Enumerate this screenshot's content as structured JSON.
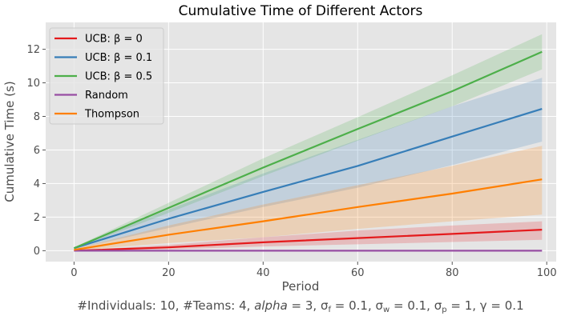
{
  "chart_data": {
    "type": "line",
    "title": "Cumulative Time of Different Actors",
    "xlabel": "Period",
    "ylabel": "Cumulative Time (s)",
    "xlim": [
      -6,
      102
    ],
    "ylim": [
      -0.65,
      13.6
    ],
    "xticks": [
      0,
      20,
      40,
      60,
      80,
      100
    ],
    "yticks": [
      0,
      2,
      4,
      6,
      8,
      10,
      12
    ],
    "grid": true,
    "legend_position": "top-left",
    "series": [
      {
        "name": "UCB: β = 0",
        "color": "#e41a1c",
        "x": [
          0,
          20,
          40,
          60,
          80,
          99
        ],
        "values": [
          0.0,
          0.2,
          0.5,
          0.75,
          1.0,
          1.25
        ],
        "lower": [
          0.0,
          0.08,
          0.25,
          0.38,
          0.52,
          0.65
        ],
        "upper": [
          0.0,
          0.35,
          0.8,
          1.2,
          1.5,
          1.75
        ]
      },
      {
        "name": "UCB: β = 0.1",
        "color": "#377eb8",
        "x": [
          0,
          20,
          40,
          60,
          80,
          99
        ],
        "values": [
          0.15,
          1.9,
          3.5,
          5.05,
          6.8,
          8.45
        ],
        "lower": [
          0.1,
          1.35,
          2.6,
          3.75,
          5.1,
          6.5
        ],
        "upper": [
          0.2,
          2.45,
          4.6,
          6.6,
          8.6,
          10.3
        ]
      },
      {
        "name": "UCB: β = 0.5",
        "color": "#4daf4a",
        "x": [
          0,
          20,
          40,
          60,
          80,
          99
        ],
        "values": [
          0.15,
          2.55,
          4.95,
          7.25,
          9.5,
          11.85
        ],
        "lower": [
          0.12,
          2.25,
          4.45,
          6.55,
          8.6,
          10.8
        ],
        "upper": [
          0.2,
          2.85,
          5.5,
          7.95,
          10.45,
          12.9
        ]
      },
      {
        "name": "Random",
        "color": "#984ea3",
        "x": [
          0,
          20,
          40,
          60,
          80,
          99
        ],
        "values": [
          0.0,
          0.0,
          0.0,
          0.0,
          0.0,
          0.0
        ],
        "lower": [
          0.0,
          0.0,
          0.0,
          0.0,
          0.0,
          0.0
        ],
        "upper": [
          0.0,
          0.0,
          0.0,
          0.0,
          0.0,
          0.0
        ]
      },
      {
        "name": "Thompson",
        "color": "#ff7f00",
        "x": [
          0,
          20,
          40,
          60,
          80,
          99
        ],
        "values": [
          0.05,
          0.95,
          1.75,
          2.6,
          3.4,
          4.25
        ],
        "lower": [
          0.02,
          0.45,
          0.8,
          1.3,
          1.75,
          2.15
        ],
        "upper": [
          0.1,
          1.5,
          2.75,
          3.9,
          5.05,
          6.25
        ]
      }
    ],
    "caption": "#Individuals: 10,  #Teams: 4,  alpha = 3,  σf = 0.1,  σw = 0.1,  σp = 1,  γ = 0.1"
  }
}
